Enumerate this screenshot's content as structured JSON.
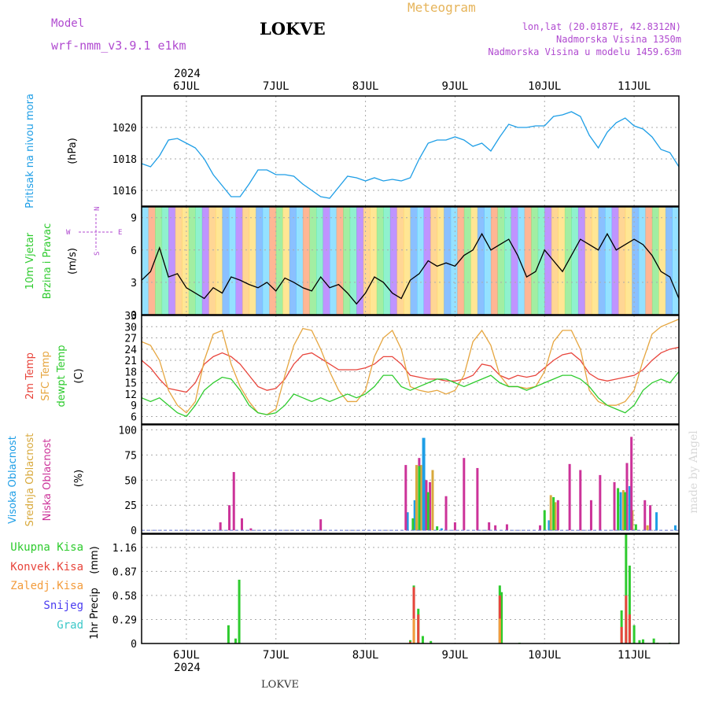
{
  "header": {
    "model_label": "Model",
    "model_name": "wrf-nmm_v3.9.1 e1km",
    "station": "LOKVE",
    "meteogram": "Meteogram",
    "lonlat": "lon,lat (20.0187E, 42.8312N)",
    "altitude": "Nadmorska Visina 1350m",
    "model_altitude": "Nadmorska Visina u modelu 1459.63m",
    "year": "2024",
    "footer": "LOKVE",
    "credit": "made by Angel"
  },
  "chart_data": [
    {
      "type": "line",
      "title": "",
      "ylabel": "Pritisak na nivou mora",
      "yunit": "(hPa)",
      "ylim": [
        1015.0,
        1022.0
      ],
      "yticks": [
        1016,
        1018,
        1020
      ],
      "series": [
        {
          "color": "#1e9ee6",
          "x": [
            0.0,
            0.1,
            0.2,
            0.3,
            0.4,
            0.5,
            0.6,
            0.7,
            0.8,
            0.9,
            1.0,
            1.1,
            1.2,
            1.3,
            1.4,
            1.5,
            1.6,
            1.7,
            1.8,
            1.9,
            2.0,
            2.1,
            2.2,
            2.3,
            2.4,
            2.5,
            2.6,
            2.7,
            2.8,
            2.9,
            3.0,
            3.1,
            3.2,
            3.3,
            3.4,
            3.5,
            3.6,
            3.7,
            3.8,
            3.9,
            4.0,
            4.1,
            4.2,
            4.3,
            4.4,
            4.5,
            4.6,
            4.7,
            4.8,
            4.9,
            5.0,
            5.1,
            5.2,
            5.3,
            5.4,
            5.5,
            5.6,
            5.7,
            5.8,
            5.9,
            6.0
          ],
          "y": [
            1017.7,
            1017.5,
            1018.2,
            1019.2,
            1019.3,
            1019.0,
            1018.7,
            1018.0,
            1017.0,
            1016.3,
            1015.6,
            1015.6,
            1016.4,
            1017.3,
            1017.3,
            1017.0,
            1017.0,
            1016.9,
            1016.4,
            1016.0,
            1015.6,
            1015.5,
            1016.2,
            1016.9,
            1016.8,
            1016.6,
            1016.8,
            1016.6,
            1016.7,
            1016.6,
            1016.8,
            1018.0,
            1019.0,
            1019.2,
            1019.2,
            1019.4,
            1019.2,
            1018.8,
            1019.0,
            1018.5,
            1019.4,
            1020.2,
            1020.0,
            1020.0,
            1020.1,
            1020.1,
            1020.7,
            1020.8,
            1021.0,
            1020.7,
            1019.5,
            1018.7,
            1019.7,
            1020.3,
            1020.6,
            1020.1,
            1019.9,
            1019.4,
            1018.6,
            1018.4,
            1017.5
          ]
        }
      ]
    },
    {
      "type": "line",
      "title": "",
      "ylabel": "10m Vjetar",
      "ylabel2": "Brzina i Pravac",
      "yunit": "(m/s)",
      "ylim": [
        0,
        10
      ],
      "yticks": [
        0,
        3,
        6,
        9
      ],
      "compass": {
        "w": "W",
        "e": "E",
        "n": "N",
        "s": "S"
      },
      "series": [
        {
          "color": "#000000",
          "x": [
            0.0,
            0.1,
            0.2,
            0.3,
            0.4,
            0.5,
            0.6,
            0.7,
            0.8,
            0.9,
            1.0,
            1.1,
            1.2,
            1.3,
            1.4,
            1.5,
            1.6,
            1.7,
            1.8,
            1.9,
            2.0,
            2.1,
            2.2,
            2.3,
            2.4,
            2.5,
            2.6,
            2.7,
            2.8,
            2.9,
            3.0,
            3.1,
            3.2,
            3.3,
            3.4,
            3.5,
            3.6,
            3.7,
            3.8,
            3.9,
            4.0,
            4.1,
            4.2,
            4.3,
            4.4,
            4.5,
            4.6,
            4.7,
            4.8,
            4.9,
            5.0,
            5.1,
            5.2,
            5.3,
            5.4,
            5.5,
            5.6,
            5.7,
            5.8,
            5.9,
            6.0
          ],
          "y": [
            3.2,
            4.0,
            6.2,
            3.5,
            3.8,
            2.5,
            2.0,
            1.5,
            2.5,
            2.0,
            3.5,
            3.2,
            2.8,
            2.5,
            3.0,
            2.2,
            3.4,
            3.0,
            2.5,
            2.2,
            3.5,
            2.5,
            2.8,
            2.0,
            1.0,
            2.0,
            3.5,
            3.0,
            2.0,
            1.5,
            3.2,
            3.8,
            5.0,
            4.5,
            4.8,
            4.5,
            5.5,
            6.0,
            7.5,
            6.0,
            6.5,
            7.0,
            5.5,
            3.5,
            4.0,
            6.0,
            5.0,
            4.0,
            5.5,
            7.0,
            6.5,
            6.0,
            7.5,
            6.0,
            6.5,
            7.0,
            6.5,
            5.5,
            4.0,
            3.5,
            1.5
          ]
        }
      ]
    },
    {
      "type": "line",
      "title": "",
      "ylabel": "2m Temp",
      "ylabel2": "SFC Temp",
      "ylabel3": "dewpt Temp",
      "yunit": "(C)",
      "ylim": [
        4,
        33
      ],
      "yticks": [
        6,
        9,
        12,
        15,
        18,
        21,
        24,
        27,
        30,
        33
      ],
      "series": [
        {
          "color": "#e8453c",
          "x": [
            0.0,
            0.1,
            0.2,
            0.3,
            0.4,
            0.5,
            0.6,
            0.7,
            0.8,
            0.9,
            1.0,
            1.1,
            1.2,
            1.3,
            1.4,
            1.5,
            1.6,
            1.7,
            1.8,
            1.9,
            2.0,
            2.1,
            2.2,
            2.3,
            2.4,
            2.5,
            2.6,
            2.7,
            2.8,
            2.9,
            3.0,
            3.1,
            3.2,
            3.3,
            3.4,
            3.5,
            3.6,
            3.7,
            3.8,
            3.9,
            4.0,
            4.1,
            4.2,
            4.3,
            4.4,
            4.5,
            4.6,
            4.7,
            4.8,
            4.9,
            5.0,
            5.1,
            5.2,
            5.3,
            5.4,
            5.5,
            5.6,
            5.7,
            5.8,
            5.9,
            6.0
          ],
          "y": [
            21,
            19,
            16,
            13.5,
            13,
            12.5,
            15,
            20,
            22,
            23,
            22,
            20,
            17,
            14,
            13,
            13.5,
            16,
            20,
            22.5,
            23,
            21.5,
            20,
            18.5,
            18.5,
            18.5,
            19,
            20,
            22,
            22,
            20,
            17,
            16.5,
            16,
            16,
            15.5,
            15.5,
            16,
            17,
            20,
            19.5,
            17,
            16,
            17,
            16.5,
            17,
            19,
            21,
            22.5,
            23,
            21,
            17.5,
            16,
            15.5,
            16,
            16.5,
            17,
            18.5,
            21,
            23,
            24,
            24.5
          ]
        },
        {
          "color": "#e6a640",
          "x": [
            0.0,
            0.1,
            0.2,
            0.3,
            0.4,
            0.5,
            0.6,
            0.7,
            0.8,
            0.9,
            1.0,
            1.1,
            1.2,
            1.3,
            1.4,
            1.5,
            1.6,
            1.7,
            1.8,
            1.9,
            2.0,
            2.1,
            2.2,
            2.3,
            2.4,
            2.5,
            2.6,
            2.7,
            2.8,
            2.9,
            3.0,
            3.1,
            3.2,
            3.3,
            3.4,
            3.5,
            3.6,
            3.7,
            3.8,
            3.9,
            4.0,
            4.1,
            4.2,
            4.3,
            4.4,
            4.5,
            4.6,
            4.7,
            4.8,
            4.9,
            5.0,
            5.1,
            5.2,
            5.3,
            5.4,
            5.5,
            5.6,
            5.7,
            5.8,
            5.9,
            6.0
          ],
          "y": [
            26,
            25,
            21,
            13,
            9,
            7,
            10,
            21,
            28,
            29,
            20,
            14,
            10,
            7,
            6.5,
            8,
            17,
            25,
            29.5,
            29,
            24,
            18,
            13,
            10,
            10,
            13,
            22,
            27,
            29,
            24,
            14,
            13,
            12.5,
            13,
            12,
            13,
            17,
            26,
            29,
            25,
            17,
            14,
            14,
            13.5,
            14,
            18,
            26,
            29,
            29,
            24,
            13,
            10,
            9,
            9,
            10,
            13,
            21,
            28,
            30,
            31,
            32
          ]
        },
        {
          "color": "#2ecb2e",
          "x": [
            0.0,
            0.1,
            0.2,
            0.3,
            0.4,
            0.5,
            0.6,
            0.7,
            0.8,
            0.9,
            1.0,
            1.1,
            1.2,
            1.3,
            1.4,
            1.5,
            1.6,
            1.7,
            1.8,
            1.9,
            2.0,
            2.1,
            2.2,
            2.3,
            2.4,
            2.5,
            2.6,
            2.7,
            2.8,
            2.9,
            3.0,
            3.1,
            3.2,
            3.3,
            3.4,
            3.5,
            3.6,
            3.7,
            3.8,
            3.9,
            4.0,
            4.1,
            4.2,
            4.3,
            4.4,
            4.5,
            4.6,
            4.7,
            4.8,
            4.9,
            5.0,
            5.1,
            5.2,
            5.3,
            5.4,
            5.5,
            5.6,
            5.7,
            5.8,
            5.9,
            6.0
          ],
          "y": [
            11,
            10,
            11,
            9,
            7,
            6,
            9,
            13,
            15,
            16.5,
            16,
            13,
            9,
            7,
            6.5,
            7,
            9,
            12,
            11,
            10,
            11,
            10,
            11,
            12,
            11,
            12,
            14,
            17,
            17,
            14,
            13,
            14,
            15,
            16,
            16,
            15,
            14,
            15,
            16,
            17,
            15,
            14,
            14,
            13,
            14,
            15,
            16,
            17,
            17,
            16,
            14,
            11,
            9,
            8,
            7,
            9,
            13,
            15,
            16,
            15,
            18
          ]
        }
      ]
    },
    {
      "type": "bar",
      "title": "",
      "ylabel": "Visoka Oblacnost",
      "ylabel2": "Srednja Oblacnost",
      "ylabel3": "Niska Oblacnost",
      "yunit": "(%)",
      "ylim": [
        -3,
        105
      ],
      "yticks": [
        0,
        25,
        50,
        75,
        100
      ],
      "series": [
        {
          "name": "high",
          "color": "#1e9ee6",
          "x": [
            2.97,
            3.05,
            3.15,
            3.35,
            4.55,
            5.35,
            5.45,
            5.75,
            5.96
          ],
          "y": [
            18,
            30,
            92,
            2,
            10,
            38,
            44,
            18,
            5
          ]
        },
        {
          "name": "mid",
          "color": "#d8a93c",
          "x": [
            3.07,
            3.12,
            3.25,
            4.57,
            4.62,
            5.38,
            5.48,
            5.65
          ],
          "y": [
            65,
            65,
            60,
            35,
            28,
            40,
            20,
            5
          ]
        },
        {
          "name": "low",
          "color": "#cc3399",
          "x": [
            0.88,
            0.98,
            1.03,
            1.12,
            1.22,
            2.0,
            2.95,
            3.1,
            3.18,
            3.22,
            3.4,
            3.5,
            3.6,
            3.75,
            3.88,
            3.95,
            4.08,
            4.45,
            4.65,
            4.78,
            4.9,
            5.02,
            5.12,
            5.28,
            5.42,
            5.47,
            5.62,
            5.68
          ],
          "y": [
            8,
            25,
            58,
            12,
            2,
            11,
            65,
            72,
            50,
            48,
            34,
            8,
            72,
            62,
            8,
            5,
            6,
            5,
            30,
            66,
            60,
            30,
            55,
            48,
            67,
            93,
            30,
            25
          ]
        },
        {
          "name": "green",
          "color": "#2ecb2e",
          "x": [
            3.03,
            3.1,
            3.2,
            3.3,
            4.5,
            4.6,
            5.32,
            5.4,
            5.52
          ],
          "y": [
            12,
            64,
            38,
            4,
            20,
            33,
            42,
            38,
            6
          ]
        }
      ]
    },
    {
      "type": "bar",
      "title": "",
      "ylabel": "1hr Precip",
      "yunit": "(mm)",
      "ylim": [
        0,
        1.32
      ],
      "yticks": [
        0,
        0.29,
        0.58,
        0.87,
        1.16
      ],
      "legend": [
        {
          "label": "Ukupna Kisa",
          "color": "#2ecb2e"
        },
        {
          "label": "Konvek.Kisa",
          "color": "#e8453c"
        },
        {
          "label": "Zaledj.Kisa",
          "color": "#f39c3c"
        },
        {
          "label": "Snijeg",
          "color": "#4a3cf0"
        },
        {
          "label": "Grad",
          "color": "#3cc8c8"
        }
      ],
      "series": [
        {
          "name": "Ukupna Kisa",
          "color": "#2ecb2e",
          "x": [
            0.97,
            1.05,
            1.09,
            3.0,
            3.04,
            3.09,
            3.14,
            3.23,
            4.0,
            4.02,
            4.22,
            5.36,
            5.41,
            5.45,
            5.5,
            5.56,
            5.6,
            5.72,
            5.76,
            5.9
          ],
          "y": [
            0.22,
            0.06,
            0.77,
            0.04,
            0.7,
            0.42,
            0.09,
            0.03,
            0.7,
            0.62,
            0.01,
            0.4,
            1.32,
            0.94,
            0.22,
            0.04,
            0.05,
            0.06,
            0.01,
            0.01
          ]
        },
        {
          "name": "Konvek.Kisa",
          "color": "#e8453c",
          "x": [
            3.0,
            3.04,
            3.09,
            4.0,
            5.36,
            5.41,
            5.45
          ],
          "y": [
            0.02,
            0.68,
            0.35,
            0.58,
            0.2,
            0.58,
            0.35
          ]
        },
        {
          "name": "Zaledj.Kisa",
          "color": "#f39c3c",
          "x": [
            3.04,
            4.0
          ],
          "y": [
            0.3,
            0.3
          ]
        }
      ]
    }
  ],
  "xaxis": {
    "ticks": [
      "6JUL",
      "7JUL",
      "8JUL",
      "9JUL",
      "10JUL",
      "11JUL"
    ],
    "tick_x": [
      0.5,
      1.5,
      2.5,
      3.5,
      4.5,
      5.5
    ],
    "xlim": [
      0,
      6
    ]
  }
}
